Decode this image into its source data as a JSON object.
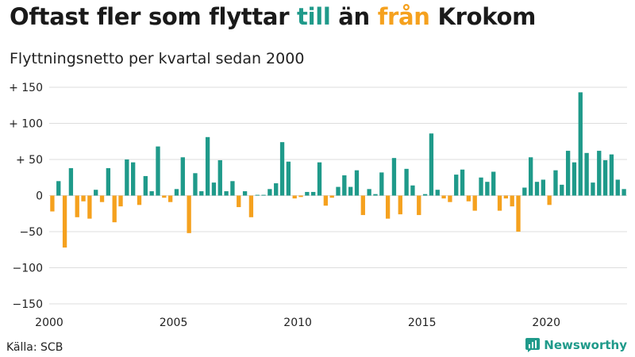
{
  "header": {
    "title_part1": "Oftast fler som flyttar",
    "title_till": "till",
    "title_part2": "än",
    "title_fran": "från",
    "title_part3": "Krokom",
    "subtitle": "Flyttningsnetto per kvartal sedan 2000"
  },
  "footer": {
    "source": "Källa: SCB",
    "brand": "Newsworthy"
  },
  "colors": {
    "positive": "#1f9a8a",
    "negative": "#f5a11e",
    "grid": "#dddddd"
  },
  "chart_data": {
    "type": "bar",
    "title": "Oftast fler som flyttar till än från Krokom",
    "subtitle": "Flyttningsnetto per kvartal sedan 2000",
    "ylim": [
      -150,
      150
    ],
    "yticks": [
      150,
      100,
      50,
      0,
      -50,
      -100,
      -150
    ],
    "ytick_labels": [
      "+ 150",
      "+ 100",
      "+  50",
      "0",
      "−50",
      "−100",
      "−150"
    ],
    "xticks": [
      2000,
      2005,
      2010,
      2015,
      2020
    ],
    "grid": true,
    "start_year": 2000,
    "values": [
      -22,
      20,
      -72,
      38,
      -30,
      -8,
      -32,
      8,
      -9,
      38,
      -37,
      -15,
      50,
      46,
      -13,
      27,
      6,
      68,
      -3,
      -9,
      9,
      53,
      -52,
      31,
      6,
      81,
      18,
      49,
      6,
      20,
      -16,
      6,
      -30,
      1,
      1,
      9,
      17,
      74,
      47,
      -4,
      -2,
      5,
      5,
      46,
      -14,
      -3,
      12,
      28,
      12,
      35,
      -27,
      9,
      2,
      32,
      -32,
      52,
      -26,
      37,
      14,
      -27,
      2,
      86,
      8,
      -4,
      -9,
      29,
      36,
      -8,
      -21,
      25,
      19,
      33,
      -21,
      -4,
      -15,
      -50,
      11,
      53,
      19,
      22,
      -13,
      35,
      15,
      62,
      46,
      143,
      59,
      18,
      62,
      49,
      57,
      22,
      9
    ]
  }
}
